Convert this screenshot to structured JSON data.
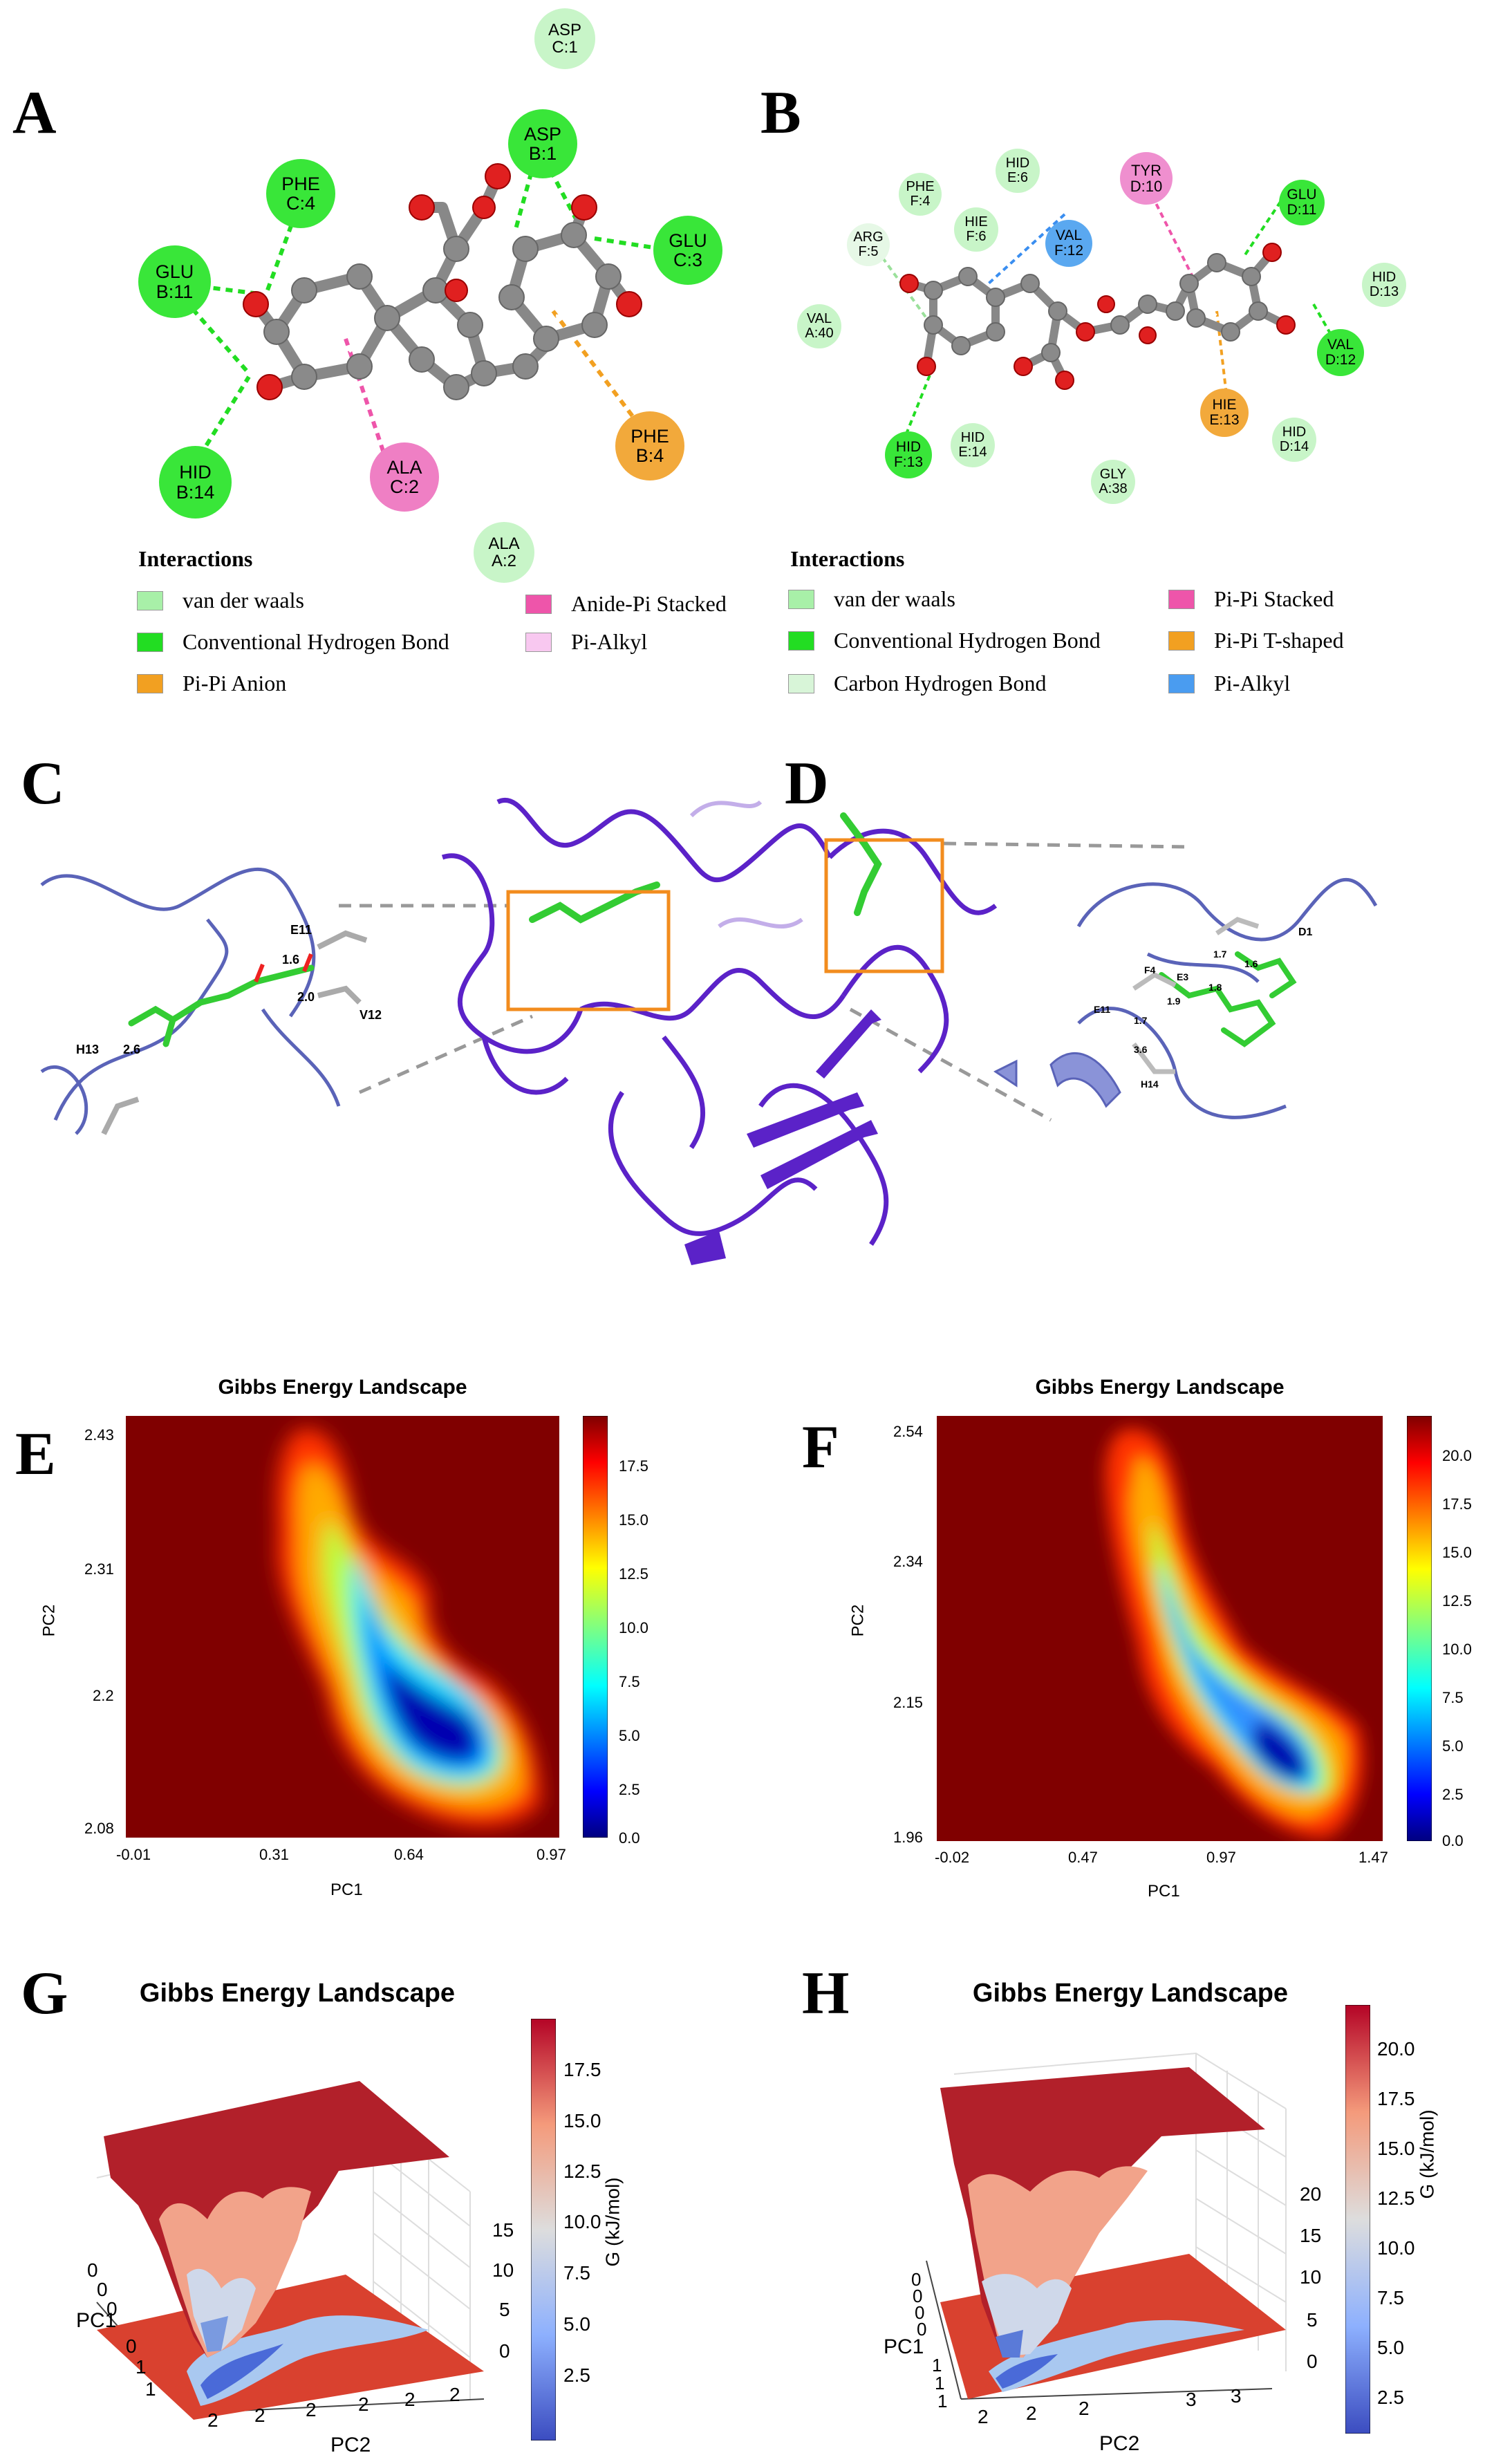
{
  "panel_letters": {
    "A": "A",
    "B": "B",
    "C": "C",
    "D": "D",
    "E": "E",
    "F": "F",
    "G": "G",
    "H": "H"
  },
  "panelA": {
    "residues": [
      {
        "label1": "ASP",
        "label2": "C:1",
        "color": "#c8f5c8"
      },
      {
        "label1": "PHE",
        "label2": "C:4",
        "color": "#39e639"
      },
      {
        "label1": "ASP",
        "label2": "B:1",
        "color": "#39e639"
      },
      {
        "label1": "GLU",
        "label2": "C:3",
        "color": "#39e639"
      },
      {
        "label1": "GLU",
        "label2": "B:11",
        "color": "#39e639"
      },
      {
        "label1": "HID",
        "label2": "B:14",
        "color": "#39e639"
      },
      {
        "label1": "ALA",
        "label2": "C:2",
        "color": "#ef7fc4"
      },
      {
        "label1": "PHE",
        "label2": "B:4",
        "color": "#f2a93b"
      },
      {
        "label1": "ALA",
        "label2": "A:2",
        "color": "#c8f5c8"
      }
    ],
    "legend_title": "Interactions",
    "legend": [
      {
        "label": "van der waals",
        "color": "#a8f0a8"
      },
      {
        "label": "Conventional Hydrogen Bond",
        "color": "#22dd22"
      },
      {
        "label": "Pi-Pi Anion",
        "color": "#f2a021"
      },
      {
        "label": "Anide-Pi Stacked",
        "color": "#ee55aa"
      },
      {
        "label": "Pi-Alkyl",
        "color": "#f8c8f0"
      }
    ]
  },
  "panelB": {
    "residues": [
      {
        "label1": "HID",
        "label2": "E:6",
        "color": "#c8f5c8"
      },
      {
        "label1": "PHE",
        "label2": "F:4",
        "color": "#c8f5c8"
      },
      {
        "label1": "HIE",
        "label2": "F:6",
        "color": "#c8f5c8"
      },
      {
        "label1": "TYR",
        "label2": "D:10",
        "color": "#ef8fcf"
      },
      {
        "label1": "GLU",
        "label2": "D:11",
        "color": "#39e639"
      },
      {
        "label1": "ARG",
        "label2": "F:5",
        "color": "#e6f8e6"
      },
      {
        "label1": "VAL",
        "label2": "F:12",
        "color": "#5aa8f0"
      },
      {
        "label1": "HID",
        "label2": "D:13",
        "color": "#c8f5c8"
      },
      {
        "label1": "VAL",
        "label2": "A:40",
        "color": "#c8f5c8"
      },
      {
        "label1": "VAL",
        "label2": "D:12",
        "color": "#39e639"
      },
      {
        "label1": "HIE",
        "label2": "E:13",
        "color": "#f2a93b"
      },
      {
        "label1": "HID",
        "label2": "F:13",
        "color": "#39e639"
      },
      {
        "label1": "HID",
        "label2": "E:14",
        "color": "#c8f5c8"
      },
      {
        "label1": "HID",
        "label2": "D:14",
        "color": "#c8f5c8"
      },
      {
        "label1": "GLY",
        "label2": "A:38",
        "color": "#c8f5c8"
      }
    ],
    "legend_title": "Interactions",
    "legend": [
      {
        "label": "van der waals",
        "color": "#a8f0a8"
      },
      {
        "label": "Conventional Hydrogen Bond",
        "color": "#22dd22"
      },
      {
        "label": "Carbon Hydrogen Bond",
        "color": "#d8f5d8"
      },
      {
        "label": "Pi-Pi Stacked",
        "color": "#ee55aa"
      },
      {
        "label": "Pi-Pi T-shaped",
        "color": "#f2a021"
      },
      {
        "label": "Pi-Alkyl",
        "color": "#4a9cf0"
      }
    ]
  },
  "panelC": {
    "labels": [
      "E11",
      "1.6",
      "2.0",
      "V12",
      "H13",
      "2.6"
    ]
  },
  "panelD": {
    "labels": [
      "D1",
      "1.7",
      "1.6",
      "F4",
      "E3",
      "1.9",
      "1.8",
      "E11",
      "1.7",
      "3.6",
      "H14"
    ]
  },
  "chart_data": [
    {
      "type": "heatmap",
      "title": "Gibbs Energy Landscape",
      "xlabel": "PC1",
      "ylabel": "PC2",
      "x_ticks": [
        "-0.01",
        "0.31",
        "0.64",
        "0.97"
      ],
      "y_ticks": [
        "2.43",
        "2.31",
        "2.2",
        "2.08"
      ],
      "colorbar_ticks": [
        "17.5",
        "15.0",
        "12.5",
        "10.0",
        "7.5",
        "5.0",
        "2.5",
        "0.0"
      ],
      "zlim": [
        0,
        19.5
      ]
    },
    {
      "type": "heatmap",
      "title": "Gibbs Energy Landscape",
      "xlabel": "PC1",
      "ylabel": "PC2",
      "x_ticks": [
        "-0.02",
        "0.47",
        "0.97",
        "1.47"
      ],
      "y_ticks": [
        "2.54",
        "2.34",
        "2.15",
        "1.96"
      ],
      "colorbar_ticks": [
        "20.0",
        "17.5",
        "15.0",
        "12.5",
        "10.0",
        "7.5",
        "5.0",
        "2.5",
        "0.0"
      ],
      "zlim": [
        0,
        22
      ]
    },
    {
      "type": "surface",
      "title": "Gibbs Energy Landscape",
      "xlabel": "PC1",
      "ylabel": "PC2",
      "zlabel": "G (kJ/mol)",
      "pc1_ticks": [
        "0",
        "0",
        "0",
        "0",
        "1",
        "1"
      ],
      "pc2_ticks": [
        "2",
        "2",
        "2",
        "2",
        "2",
        "2"
      ],
      "z_ticks": [
        "15",
        "10",
        "5",
        "0"
      ],
      "colorbar_ticks": [
        "17.5",
        "15.0",
        "12.5",
        "10.0",
        "7.5",
        "5.0",
        "2.5"
      ]
    },
    {
      "type": "surface",
      "title": "Gibbs Energy Landscape",
      "xlabel": "PC1",
      "ylabel": "PC2",
      "zlabel": "G (kJ/mol)",
      "pc1_ticks": [
        "0",
        "0",
        "0",
        "0",
        "1",
        "1",
        "1"
      ],
      "pc2_ticks": [
        "2",
        "2",
        "2",
        "3",
        "3"
      ],
      "z_ticks": [
        "20",
        "15",
        "10",
        "5",
        "0"
      ],
      "colorbar_ticks": [
        "20.0",
        "17.5",
        "15.0",
        "12.5",
        "10.0",
        "7.5",
        "5.0",
        "2.5"
      ]
    }
  ]
}
